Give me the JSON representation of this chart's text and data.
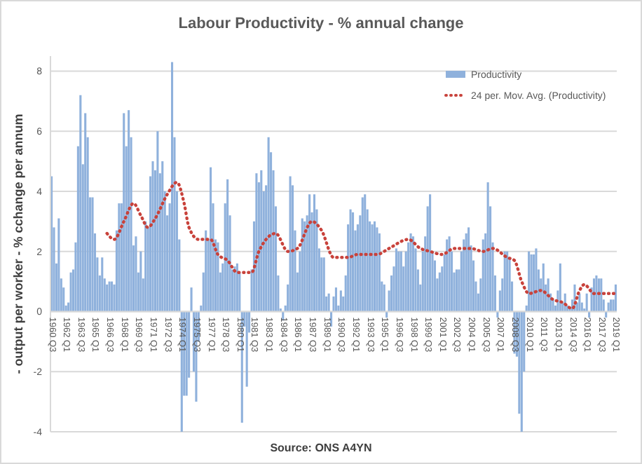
{
  "chart_data": {
    "type": "bar",
    "title": "Labour Productivity - % annual change",
    "ylabel": "- output per worker - % cchange per annum",
    "annotations": [
      "Source: ONS A4YN"
    ],
    "categories": [
      "1960 Q3",
      null,
      null,
      null,
      null,
      null,
      "1962 Q1",
      null,
      null,
      null,
      null,
      null,
      "1963 Q3",
      null,
      null,
      null,
      null,
      null,
      "1965 Q1",
      null,
      null,
      null,
      null,
      null,
      "1966 Q3",
      null,
      null,
      null,
      null,
      null,
      "1968 Q1",
      null,
      null,
      null,
      null,
      null,
      "1969 Q3",
      null,
      null,
      null,
      null,
      null,
      "1971 Q1",
      null,
      null,
      null,
      null,
      null,
      "1972 Q3",
      null,
      null,
      null,
      null,
      null,
      "1974 Q1",
      null,
      null,
      null,
      null,
      null,
      "1975 Q3",
      null,
      null,
      null,
      null,
      null,
      "1977 Q1",
      null,
      null,
      null,
      null,
      null,
      "1978 Q3",
      null,
      null,
      null,
      null,
      null,
      "1980 Q1",
      null,
      null,
      null,
      null,
      null,
      "1981 Q3",
      null,
      null,
      null,
      null,
      null,
      "1983 Q1",
      null,
      null,
      null,
      null,
      null,
      "1984 Q3",
      null,
      null,
      null,
      null,
      null,
      "1986 Q1",
      null,
      null,
      null,
      null,
      null,
      "1987 Q3",
      null,
      null,
      null,
      null,
      null,
      "1989 Q1",
      null,
      null,
      null,
      null,
      null,
      "1990 Q3",
      null,
      null,
      null,
      null,
      null,
      "1992 Q1",
      null,
      null,
      null,
      null,
      null,
      "1993 Q3",
      null,
      null,
      null,
      null,
      null,
      "1995 Q1",
      null,
      null,
      null,
      null,
      null,
      "1996 Q3",
      null,
      null,
      null,
      null,
      null,
      "1998 Q1",
      null,
      null,
      null,
      null,
      null,
      "1999 Q3",
      null,
      null,
      null,
      null,
      null,
      "2001 Q1",
      null,
      null,
      null,
      null,
      null,
      "2002 Q3",
      null,
      null,
      null,
      null,
      null,
      "2004 Q1",
      null,
      null,
      null,
      null,
      null,
      "2005 Q3",
      null,
      null,
      null,
      null,
      null,
      "2007 Q1",
      null,
      null,
      null,
      null,
      null,
      "2008 Q3",
      null,
      null,
      null,
      null,
      null,
      "2010 Q1",
      null,
      null,
      null,
      null,
      null,
      "2011 Q3",
      null,
      null,
      null,
      null,
      null,
      "2013 Q1",
      null,
      null,
      null,
      null,
      null,
      "2014 Q3",
      null,
      null,
      null,
      null,
      null,
      "2016 Q1",
      null,
      null,
      null,
      null,
      null,
      "2017 Q3",
      null,
      null,
      null,
      null,
      null,
      "2019 Q1"
    ],
    "series": [
      {
        "name": "Productivity",
        "color": "#8fb1dc",
        "values": [
          4.5,
          2.8,
          1.6,
          3.1,
          1.1,
          0.8,
          0.2,
          0.3,
          1.3,
          1.4,
          2.3,
          5.5,
          7.2,
          4.9,
          6.6,
          5.8,
          3.8,
          3.8,
          2.6,
          1.8,
          1.2,
          1.8,
          1.1,
          0.9,
          1.0,
          1.0,
          0.9,
          2.7,
          3.6,
          3.6,
          6.6,
          5.5,
          6.7,
          5.8,
          2.2,
          2.5,
          1.3,
          2.0,
          1.1,
          3.0,
          2.8,
          4.5,
          5.0,
          4.7,
          6.0,
          4.6,
          5.0,
          4.0,
          3.2,
          3.6,
          8.3,
          5.8,
          4.0,
          2.4,
          -4.0,
          -2.8,
          -2.8,
          -2.2,
          0.8,
          -2.0,
          -3.0,
          -1.0,
          0.2,
          1.3,
          2.7,
          2.4,
          4.8,
          3.6,
          2.4,
          2.3,
          1.3,
          1.6,
          3.6,
          4.4,
          3.2,
          1.4,
          1.5,
          1.6,
          1.3,
          -3.7,
          -0.5,
          -2.5,
          -0.7,
          1.4,
          3.0,
          4.6,
          4.3,
          4.7,
          4.0,
          4.2,
          5.8,
          5.3,
          4.7,
          3.5,
          1.2,
          0.1,
          -0.3,
          0.2,
          0.9,
          4.5,
          4.2,
          2.7,
          1.3,
          2.0,
          3.1,
          3.0,
          3.2,
          3.9,
          3.3,
          3.9,
          3.4,
          2.1,
          1.8,
          1.8,
          0.5,
          0.6,
          -0.5,
          0.5,
          0.8,
          0.2,
          0.7,
          0.5,
          1.2,
          2.9,
          3.4,
          3.3,
          2.7,
          2.9,
          3.2,
          3.8,
          3.9,
          3.4,
          3.0,
          2.9,
          3.0,
          2.8,
          2.6,
          1.0,
          0.9,
          -0.2,
          0.7,
          1.2,
          1.5,
          2.1,
          2.0,
          2.0,
          1.5,
          2.0,
          2.3,
          2.6,
          2.5,
          2.1,
          1.4,
          0.9,
          2.0,
          2.5,
          3.5,
          3.9,
          2.0,
          1.7,
          1.1,
          1.3,
          1.5,
          1.9,
          2.4,
          2.5,
          2.0,
          1.3,
          1.4,
          1.4,
          2.0,
          2.4,
          2.6,
          2.8,
          2.2,
          1.7,
          1.0,
          0.6,
          1.1,
          2.4,
          2.6,
          4.3,
          3.5,
          2.3,
          1.2,
          -0.2,
          0.7,
          1.1,
          2.0,
          2.0,
          1.8,
          1.0,
          -1.4,
          -1.5,
          -3.4,
          -4.0,
          -2.0,
          0.2,
          2.0,
          1.9,
          1.9,
          2.1,
          1.4,
          1.1,
          1.6,
          0.9,
          1.1,
          0.6,
          0.4,
          0.2,
          0.7,
          1.6,
          0.3,
          0.6,
          0.2,
          0.1,
          0.4,
          0.9,
          0.3,
          0.6,
          0.3,
          0.1,
          0.6,
          -0.2,
          0.8,
          1.1,
          1.2,
          1.1,
          1.1,
          0.4,
          -0.2,
          0.3,
          0.4,
          0.4,
          0.9
        ]
      },
      {
        "name": "24 per. Mov. Avg. (Productivity)",
        "type": "line",
        "color": "#c8423b",
        "line_style": "dotted",
        "values": [
          null,
          null,
          null,
          null,
          null,
          null,
          null,
          null,
          null,
          null,
          null,
          null,
          null,
          null,
          null,
          null,
          null,
          null,
          null,
          null,
          null,
          null,
          null,
          2.6,
          null,
          null,
          2.4,
          null,
          null,
          null,
          3.0,
          null,
          null,
          null,
          3.6,
          null,
          null,
          3.2,
          null,
          null,
          2.8,
          null,
          null,
          3.1,
          null,
          null,
          null,
          null,
          3.9,
          null,
          null,
          null,
          4.3,
          null,
          null,
          3.6,
          null,
          2.8,
          null,
          null,
          null,
          2.4,
          null,
          null,
          null,
          null,
          2.4,
          null,
          null,
          1.9,
          null,
          null,
          null,
          1.7,
          null,
          null,
          null,
          1.3,
          null,
          null,
          null,
          null,
          null,
          1.3,
          null,
          null,
          2.0,
          null,
          null,
          null,
          null,
          null,
          null,
          2.6,
          null,
          null,
          null,
          null,
          2.0,
          null,
          null,
          null,
          2.1,
          null,
          null,
          null,
          null,
          null,
          3.0,
          null,
          null,
          null,
          2.7,
          null,
          null,
          null,
          null,
          1.8,
          null,
          null,
          null,
          null,
          null,
          1.8,
          null,
          null,
          null,
          1.9,
          null,
          null,
          null,
          null,
          null,
          null,
          null,
          1.9,
          null,
          null,
          null,
          null,
          2.1,
          null,
          null,
          null,
          null,
          null,
          null,
          null,
          2.4,
          null,
          null,
          null,
          null,
          2.1,
          null,
          null,
          null,
          2.0,
          null,
          null,
          null,
          null,
          1.9,
          null,
          null,
          null,
          null,
          2.1,
          null,
          null,
          null,
          null,
          null,
          null,
          2.1,
          null,
          null,
          null,
          null,
          2.0,
          null,
          null,
          null,
          2.1,
          null,
          null,
          null,
          null,
          null,
          1.8,
          null,
          null,
          1.7,
          null,
          null,
          1.0,
          null,
          null,
          0.6,
          null,
          null,
          null,
          null,
          0.7,
          null,
          null,
          null,
          null,
          0.4,
          null,
          null,
          null,
          0.3,
          null,
          null,
          null,
          0.1,
          null,
          null,
          0.7,
          null,
          0.9,
          null,
          null,
          null,
          0.6,
          null,
          null,
          null,
          null,
          0.6,
          null,
          null,
          null,
          0.6
        ]
      }
    ],
    "ylim": [
      -4,
      8.5
    ],
    "yticks": [
      -4,
      -2,
      0,
      2,
      4,
      6,
      8
    ],
    "grid": "y",
    "legend": "top right"
  }
}
